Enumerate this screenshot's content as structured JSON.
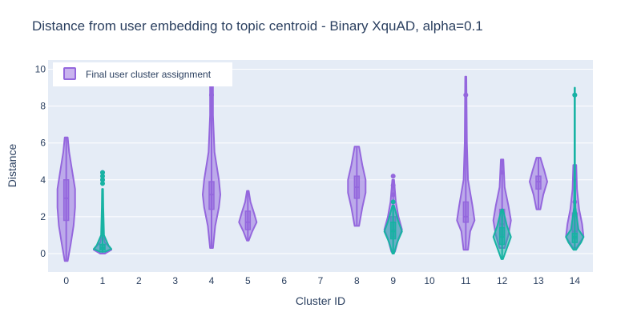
{
  "chart_data": {
    "type": "violin",
    "title": "Distance from user embedding to topic centroid - Binary XquAD, alpha=0.1",
    "xlabel": "Cluster ID",
    "ylabel": "Distance",
    "x_ticks": [
      "0",
      "1",
      "2",
      "3",
      "4",
      "5",
      "6",
      "7",
      "8",
      "9",
      "10",
      "11",
      "12",
      "13",
      "14"
    ],
    "y_ticks": [
      "0",
      "2",
      "4",
      "6",
      "8",
      "10"
    ],
    "xlim": [
      -0.5,
      14.5
    ],
    "ylim": [
      -1.0,
      10.5
    ],
    "grid": true,
    "legend": {
      "position": "top-left",
      "entries": [
        "Final user cluster assignment"
      ]
    },
    "colors": {
      "primary": "#9467dd",
      "secondary": "#17b3a3",
      "plot_bg": "#e5ecf6",
      "grid": "#ffffff",
      "text": "#2a3f5f"
    },
    "series": [
      {
        "name": "Final user cluster assignment",
        "color": "#9467dd",
        "violins": [
          {
            "x": 0,
            "min": -0.4,
            "q1": 1.8,
            "median": 3.0,
            "q3": 4.0,
            "max": 6.3,
            "dens": [
              [
                -0.4,
                0.01
              ],
              [
                0.5,
                0.03
              ],
              [
                1.5,
                0.05
              ],
              [
                2.5,
                0.06
              ],
              [
                3.5,
                0.06
              ],
              [
                4.5,
                0.04
              ],
              [
                5.5,
                0.02
              ],
              [
                6.3,
                0.01
              ]
            ],
            "outliers": []
          },
          {
            "x": 1,
            "min": 0.0,
            "q1": 0.2,
            "median": 0.3,
            "q3": 0.45,
            "max": 3.5,
            "dens": [
              [
                0.0,
                0.08
              ],
              [
                0.2,
                0.3
              ],
              [
                0.35,
                0.24
              ],
              [
                0.6,
                0.08
              ],
              [
                1.0,
                0.03
              ],
              [
                2.0,
                0.015
              ],
              [
                3.5,
                0.01
              ]
            ],
            "outliers": [
              4.0,
              4.4
            ]
          },
          {
            "x": 4,
            "min": 0.3,
            "q1": 2.4,
            "median": 3.2,
            "q3": 3.9,
            "max": 9.2,
            "dens": [
              [
                0.3,
                0.01
              ],
              [
                1.5,
                0.025
              ],
              [
                2.5,
                0.05
              ],
              [
                3.2,
                0.06
              ],
              [
                4.0,
                0.05
              ],
              [
                5.5,
                0.02
              ],
              [
                7.5,
                0.01
              ],
              [
                9.2,
                0.01
              ]
            ],
            "outliers": [
              8.6
            ]
          },
          {
            "x": 5,
            "min": 0.7,
            "q1": 1.3,
            "median": 1.7,
            "q3": 2.3,
            "max": 3.4,
            "dens": [
              [
                0.7,
                0.01
              ],
              [
                1.2,
                0.05
              ],
              [
                1.7,
                0.1
              ],
              [
                2.2,
                0.07
              ],
              [
                2.8,
                0.03
              ],
              [
                3.4,
                0.01
              ]
            ],
            "outliers": []
          },
          {
            "x": 8,
            "min": 1.5,
            "q1": 3.0,
            "median": 3.6,
            "q3": 4.2,
            "max": 5.8,
            "dens": [
              [
                1.5,
                0.02
              ],
              [
                2.5,
                0.05
              ],
              [
                3.3,
                0.08
              ],
              [
                4.0,
                0.08
              ],
              [
                4.8,
                0.05
              ],
              [
                5.8,
                0.02
              ]
            ],
            "outliers": []
          },
          {
            "x": 9,
            "min": 0.1,
            "q1": 0.9,
            "median": 1.3,
            "q3": 2.0,
            "max": 4.0,
            "dens": [
              [
                0.1,
                0.02
              ],
              [
                0.8,
                0.06
              ],
              [
                1.3,
                0.1
              ],
              [
                2.0,
                0.06
              ],
              [
                2.8,
                0.03
              ],
              [
                4.0,
                0.01
              ]
            ],
            "outliers": [
              4.2,
              3.7,
              3.2
            ]
          },
          {
            "x": 11,
            "min": 0.2,
            "q1": 1.7,
            "median": 2.0,
            "q3": 2.8,
            "max": 9.6,
            "dens": [
              [
                0.2,
                0.02
              ],
              [
                1.2,
                0.04
              ],
              [
                1.8,
                0.08
              ],
              [
                2.6,
                0.06
              ],
              [
                4.0,
                0.02
              ],
              [
                6.0,
                0.01
              ],
              [
                9.6,
                0.005
              ]
            ],
            "outliers": [
              8.6
            ]
          },
          {
            "x": 12,
            "min": 0.3,
            "q1": 1.0,
            "median": 1.6,
            "q3": 2.4,
            "max": 5.1,
            "dens": [
              [
                0.3,
                0.02
              ],
              [
                1.0,
                0.05
              ],
              [
                1.8,
                0.07
              ],
              [
                2.6,
                0.05
              ],
              [
                3.6,
                0.02
              ],
              [
                5.1,
                0.01
              ]
            ],
            "outliers": [
              4.4
            ]
          },
          {
            "x": 13,
            "min": 2.4,
            "q1": 3.5,
            "median": 3.9,
            "q3": 4.2,
            "max": 5.2,
            "dens": [
              [
                2.4,
                0.02
              ],
              [
                3.2,
                0.05
              ],
              [
                3.9,
                0.09
              ],
              [
                4.5,
                0.06
              ],
              [
                5.2,
                0.02
              ]
            ],
            "outliers": []
          },
          {
            "x": 14,
            "min": 0.3,
            "q1": 0.8,
            "median": 1.2,
            "q3": 2.2,
            "max": 4.8,
            "dens": [
              [
                0.3,
                0.01
              ],
              [
                0.9,
                0.06
              ],
              [
                1.6,
                0.05
              ],
              [
                2.4,
                0.03
              ],
              [
                3.5,
                0.015
              ],
              [
                4.8,
                0.01
              ]
            ],
            "outliers": [
              8.6,
              4.0,
              2.8
            ]
          }
        ]
      },
      {
        "color": "#17b3a3",
        "violins": [
          {
            "x": 1,
            "min": 0.1,
            "q1": 0.2,
            "median": 0.3,
            "q3": 0.5,
            "max": 3.5,
            "dens": [
              [
                0.1,
                0.05
              ],
              [
                0.25,
                0.18
              ],
              [
                0.45,
                0.12
              ],
              [
                1.0,
                0.03
              ],
              [
                2.5,
                0.015
              ],
              [
                3.5,
                0.01
              ]
            ],
            "outliers": [
              4.4,
              4.2,
              4.0,
              3.8
            ]
          },
          {
            "x": 9,
            "min": 0.0,
            "q1": 0.8,
            "median": 1.2,
            "q3": 1.7,
            "max": 2.6,
            "dens": [
              [
                0.0,
                0.01
              ],
              [
                0.6,
                0.05
              ],
              [
                1.2,
                0.11
              ],
              [
                1.8,
                0.06
              ],
              [
                2.6,
                0.01
              ]
            ],
            "outliers": [
              2.8
            ]
          },
          {
            "x": 12,
            "min": -0.3,
            "q1": 0.5,
            "median": 0.9,
            "q3": 1.4,
            "max": 2.4,
            "dens": [
              [
                -0.3,
                0.01
              ],
              [
                0.3,
                0.06
              ],
              [
                0.9,
                0.11
              ],
              [
                1.5,
                0.06
              ],
              [
                2.4,
                0.01
              ]
            ],
            "outliers": []
          },
          {
            "x": 14,
            "min": 0.2,
            "q1": 0.6,
            "median": 0.9,
            "q3": 1.1,
            "max": 9.0,
            "dens": [
              [
                0.2,
                0.02
              ],
              [
                0.6,
                0.1
              ],
              [
                0.9,
                0.14
              ],
              [
                1.3,
                0.06
              ],
              [
                2.5,
                0.01
              ],
              [
                5.0,
                0.004
              ],
              [
                9.0,
                0.003
              ]
            ],
            "outliers": [
              8.6
            ]
          }
        ]
      }
    ]
  }
}
